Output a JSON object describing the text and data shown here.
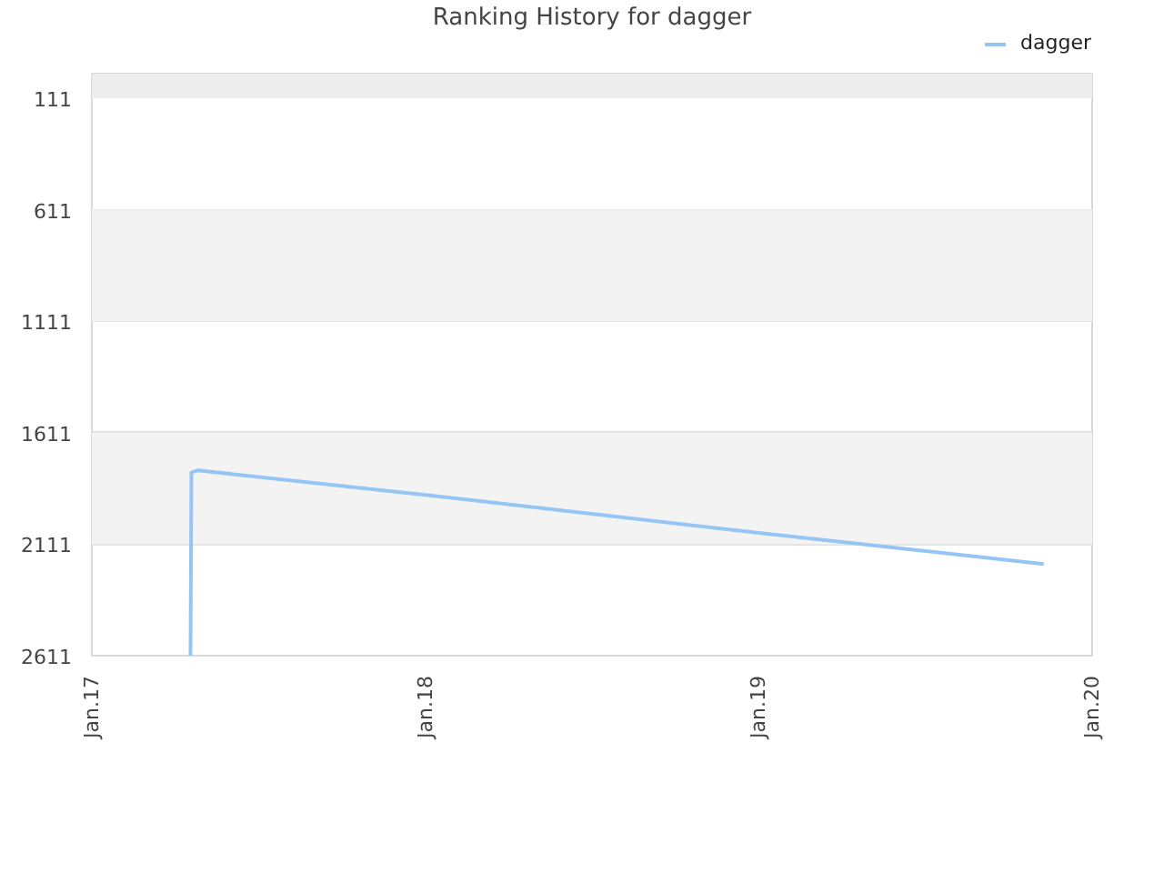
{
  "chart_data": {
    "type": "line",
    "title": "Ranking History for dagger",
    "x": [
      "2017-04-19",
      "2017-04-20",
      "2017-04-27",
      "2018-01-01",
      "2019-01-01",
      "2019-11-09"
    ],
    "series": [
      {
        "name": "dagger",
        "color": "#95c5f5",
        "values": [
          2611,
          1790,
          1780,
          1890,
          2060,
          2200
        ]
      }
    ],
    "xlim": [
      "2017-01-01",
      "2020-01-01"
    ],
    "xticks": [
      {
        "value": "2017-01-01",
        "label": "Jan.17"
      },
      {
        "value": "2018-01-01",
        "label": "Jan.18"
      },
      {
        "value": "2019-01-01",
        "label": "Jan.19"
      },
      {
        "value": "2020-01-01",
        "label": "Jan.20"
      }
    ],
    "ylim": [
      2611,
      1
    ],
    "yticks": [
      111,
      611,
      1111,
      1611,
      2111,
      2611
    ],
    "grid": "y",
    "bands": [
      {
        "axis": "y",
        "from": 1,
        "to": 111,
        "color": "#ededed"
      },
      {
        "axis": "y",
        "from": 611,
        "to": 1111,
        "color": "#f3f3f3"
      },
      {
        "axis": "y",
        "from": 1611,
        "to": 2111,
        "color": "#f3f3f3"
      }
    ],
    "legend": "top right"
  }
}
